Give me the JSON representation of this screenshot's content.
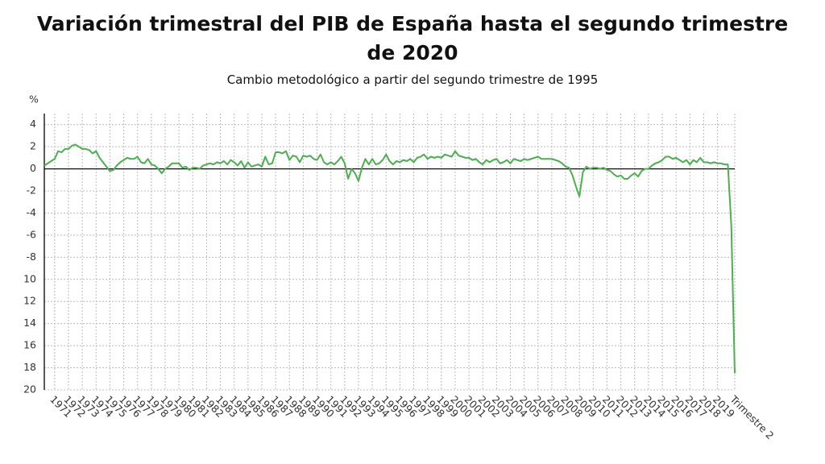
{
  "chart_data": {
    "type": "line",
    "title": "Variación trimestral del PIB de España hasta el segundo trimestre de 2020",
    "subtitle": "Cambio metodológico a partir del segundo trimestre de 1995",
    "y_label": "%",
    "categories": [
      null,
      null,
      null,
      "1971",
      null,
      null,
      null,
      "1972",
      null,
      null,
      null,
      "1973",
      null,
      null,
      null,
      "1974",
      null,
      null,
      null,
      "1975",
      null,
      null,
      null,
      "1976",
      null,
      null,
      null,
      "1977",
      null,
      null,
      null,
      "1978",
      null,
      null,
      null,
      "1979",
      null,
      null,
      null,
      "1980",
      null,
      null,
      null,
      "1981",
      null,
      null,
      null,
      "1982",
      null,
      null,
      null,
      "1983",
      null,
      null,
      null,
      "1984",
      null,
      null,
      null,
      "1985",
      null,
      null,
      null,
      "1986",
      null,
      null,
      null,
      "1987",
      null,
      null,
      null,
      "1988",
      null,
      null,
      null,
      "1989",
      null,
      null,
      null,
      "1990",
      null,
      null,
      null,
      "1991",
      null,
      null,
      null,
      "1992",
      null,
      null,
      null,
      "1993",
      null,
      null,
      null,
      "1994",
      null,
      null,
      null,
      "1995",
      null,
      null,
      null,
      "1996",
      null,
      null,
      null,
      "1997",
      null,
      null,
      null,
      "1998",
      null,
      null,
      null,
      "1999",
      null,
      null,
      null,
      "2000",
      null,
      null,
      null,
      "2001",
      null,
      null,
      null,
      "2002",
      null,
      null,
      null,
      "2003",
      null,
      null,
      null,
      "2004",
      null,
      null,
      null,
      "2005",
      null,
      null,
      null,
      "2006",
      null,
      null,
      null,
      "2007",
      null,
      null,
      null,
      "2008",
      null,
      null,
      null,
      "2009",
      null,
      null,
      null,
      "2010",
      null,
      null,
      null,
      "2011",
      null,
      null,
      null,
      "2012",
      null,
      null,
      null,
      "2013",
      null,
      null,
      null,
      "2014",
      null,
      null,
      null,
      "2015",
      null,
      null,
      null,
      "2016",
      null,
      null,
      null,
      "2017",
      null,
      null,
      null,
      "2018",
      null,
      null,
      null,
      "2019",
      null,
      null,
      null,
      null,
      "Trimestre 2"
    ],
    "series": [
      {
        "name": "PIB",
        "color": "#4caf50",
        "values": [
          0.3,
          0.5,
          0.7,
          0.9,
          1.6,
          1.5,
          1.8,
          1.8,
          2.1,
          2.2,
          2.0,
          1.8,
          1.8,
          1.7,
          1.4,
          1.6,
          1.0,
          0.6,
          0.2,
          -0.2,
          -0.1,
          0.3,
          0.6,
          0.8,
          1.0,
          0.9,
          0.9,
          1.1,
          0.6,
          0.5,
          0.9,
          0.4,
          0.3,
          0.0,
          -0.4,
          0.0,
          0.2,
          0.5,
          0.5,
          0.5,
          0.1,
          0.2,
          -0.1,
          0.1,
          0.1,
          0.0,
          0.3,
          0.4,
          0.5,
          0.4,
          0.6,
          0.5,
          0.7,
          0.4,
          0.8,
          0.6,
          0.3,
          0.7,
          0.1,
          0.6,
          0.2,
          0.3,
          0.4,
          0.2,
          1.1,
          0.4,
          0.5,
          1.5,
          1.5,
          1.4,
          1.6,
          0.8,
          1.2,
          1.1,
          0.6,
          1.2,
          1.1,
          1.2,
          0.9,
          0.8,
          1.3,
          0.6,
          0.4,
          0.6,
          0.4,
          0.7,
          1.1,
          0.5,
          -0.9,
          0.0,
          -0.4,
          -1.1,
          0.1,
          0.9,
          0.4,
          0.9,
          0.4,
          0.5,
          0.8,
          1.3,
          0.7,
          0.4,
          0.7,
          0.6,
          0.8,
          0.7,
          0.9,
          0.6,
          1.0,
          1.1,
          1.3,
          0.9,
          1.1,
          1.0,
          1.1,
          1.0,
          1.3,
          1.2,
          1.1,
          1.6,
          1.2,
          1.1,
          1.0,
          1.0,
          0.8,
          0.9,
          0.6,
          0.4,
          0.8,
          0.6,
          0.8,
          0.9,
          0.5,
          0.6,
          0.8,
          0.5,
          0.9,
          0.8,
          0.7,
          0.9,
          0.8,
          0.9,
          1.0,
          1.1,
          0.9,
          0.9,
          0.9,
          0.9,
          0.8,
          0.7,
          0.5,
          0.2,
          0.1,
          -0.6,
          -1.6,
          -2.5,
          -0.3,
          0.2,
          0.0,
          0.1,
          0.1,
          0.0,
          0.1,
          -0.1,
          -0.2,
          -0.5,
          -0.7,
          -0.6,
          -0.9,
          -0.9,
          -0.6,
          -0.4,
          -0.7,
          -0.2,
          0.0,
          0.0,
          0.3,
          0.5,
          0.6,
          0.8,
          1.1,
          1.1,
          0.9,
          1.0,
          0.8,
          0.6,
          0.8,
          0.4,
          0.8,
          0.6,
          1.0,
          0.6,
          0.6,
          0.5,
          0.6,
          0.5,
          0.5,
          0.4,
          0.4,
          -5.2,
          -18.5
        ]
      }
    ],
    "ylim": [
      -20,
      5
    ],
    "yticks": [
      4,
      2,
      0,
      -2,
      -4,
      -6,
      -8,
      {
        "value": -10,
        "label": "10"
      },
      {
        "value": -12,
        "label": "12"
      },
      {
        "value": -14,
        "label": "14"
      },
      {
        "value": -16,
        "label": "16"
      },
      {
        "value": -18,
        "label": "18"
      },
      {
        "value": -20,
        "label": "20"
      }
    ],
    "grid": true
  }
}
